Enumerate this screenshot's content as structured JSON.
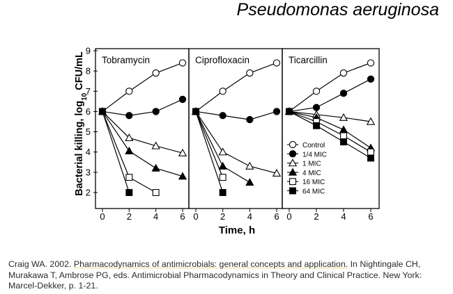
{
  "slide": {
    "title": "Pseudomonas aeruginosa",
    "citation": {
      "prefix": "Craig WA. 2002. ",
      "highlight": "Pharmacodynamics of antimicrobials: general concepts and application.",
      "rest": " In Nightingale CH, Murakawa T, Ambrose PG, eds. Antimicrobial Pharmacodynamics in Theory and Clinical Practice. New York: Marcel-Dekker, p. 1-21."
    }
  },
  "chart_data": {
    "type": "line",
    "ylabel_main": "Bacterial killing, log",
    "ylabel_sub": "10",
    "ylabel_unit": " CFU/mL",
    "xlabel": "Time, h",
    "ylim": [
      1.5,
      9
    ],
    "yticks": [
      2,
      3,
      4,
      5,
      6,
      7,
      8,
      9
    ],
    "xticks": [
      0,
      2,
      4,
      6
    ],
    "legend_position": "bottom-right of third panel",
    "legend": [
      {
        "label": "Control",
        "marker": "circle-open"
      },
      {
        "label": "1/4 MIC",
        "marker": "circle-filled"
      },
      {
        "label": "1 MIC",
        "marker": "triangle-open"
      },
      {
        "label": "4 MIC",
        "marker": "triangle-filled"
      },
      {
        "label": "16 MIC",
        "marker": "square-open"
      },
      {
        "label": "64 MIC",
        "marker": "square-filled"
      }
    ],
    "panels": [
      {
        "title": "Tobramycin",
        "series": [
          {
            "marker": "circle-open",
            "x": [
              0,
              2,
              4,
              6
            ],
            "y": [
              6.0,
              7.0,
              7.9,
              8.4
            ]
          },
          {
            "marker": "circle-filled",
            "x": [
              0,
              2,
              4,
              6
            ],
            "y": [
              6.0,
              5.8,
              6.0,
              6.6
            ]
          },
          {
            "marker": "triangle-open",
            "x": [
              0,
              2,
              4,
              6
            ],
            "y": [
              6.0,
              4.7,
              4.3,
              3.95
            ]
          },
          {
            "marker": "triangle-filled",
            "x": [
              0,
              2,
              4,
              6
            ],
            "y": [
              6.0,
              4.05,
              3.2,
              2.8
            ]
          },
          {
            "marker": "square-open",
            "x": [
              0,
              2,
              4
            ],
            "y": [
              6.0,
              2.75,
              2.0
            ]
          },
          {
            "marker": "square-filled",
            "x": [
              0,
              2
            ],
            "y": [
              6.0,
              2.0
            ]
          }
        ]
      },
      {
        "title": "Ciprofloxacin",
        "series": [
          {
            "marker": "circle-open",
            "x": [
              0,
              2,
              4,
              6
            ],
            "y": [
              6.0,
              7.0,
              7.9,
              8.4
            ]
          },
          {
            "marker": "circle-filled",
            "x": [
              0,
              2,
              4,
              6
            ],
            "y": [
              6.0,
              5.8,
              5.6,
              6.0
            ]
          },
          {
            "marker": "triangle-open",
            "x": [
              0,
              2,
              4,
              6
            ],
            "y": [
              6.0,
              4.0,
              3.3,
              2.95
            ]
          },
          {
            "marker": "triangle-filled",
            "x": [
              0,
              2,
              4
            ],
            "y": [
              6.0,
              3.3,
              2.5
            ]
          },
          {
            "marker": "square-open",
            "x": [
              0,
              2
            ],
            "y": [
              6.0,
              2.75
            ]
          },
          {
            "marker": "square-filled",
            "x": [
              0,
              2
            ],
            "y": [
              6.0,
              2.0
            ]
          }
        ]
      },
      {
        "title": "Ticarcillin",
        "series": [
          {
            "marker": "circle-open",
            "x": [
              0,
              2,
              4,
              6
            ],
            "y": [
              6.0,
              7.0,
              7.9,
              8.4
            ]
          },
          {
            "marker": "circle-filled",
            "x": [
              0,
              2,
              4,
              6
            ],
            "y": [
              6.0,
              6.2,
              6.9,
              7.6
            ]
          },
          {
            "marker": "triangle-open",
            "x": [
              0,
              2,
              4,
              6
            ],
            "y": [
              6.0,
              5.85,
              5.7,
              5.5
            ]
          },
          {
            "marker": "triangle-filled",
            "x": [
              0,
              2,
              4,
              6
            ],
            "y": [
              6.0,
              5.7,
              5.1,
              4.2
            ]
          },
          {
            "marker": "square-open",
            "x": [
              0,
              2,
              4,
              6
            ],
            "y": [
              6.0,
              5.5,
              4.8,
              4.0
            ]
          },
          {
            "marker": "square-filled",
            "x": [
              0,
              2,
              4,
              6
            ],
            "y": [
              6.0,
              5.3,
              4.5,
              3.7
            ]
          }
        ]
      }
    ]
  }
}
